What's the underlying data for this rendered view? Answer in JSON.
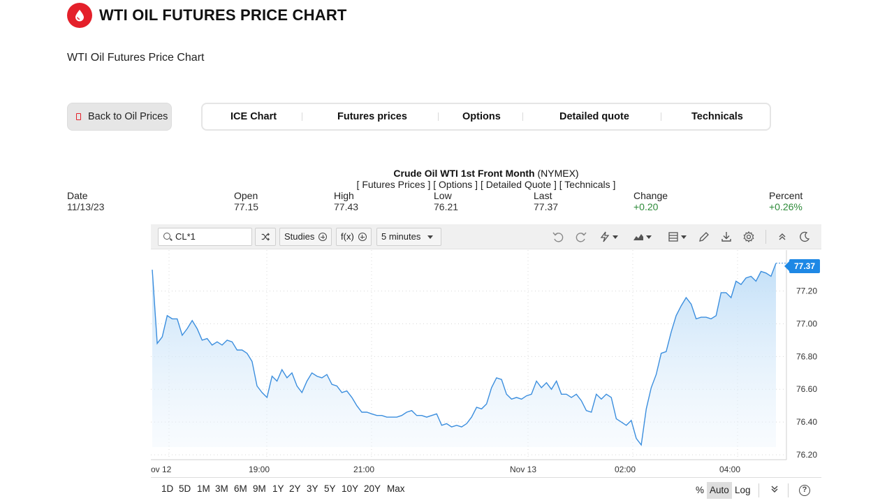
{
  "header": {
    "title": "WTI OIL FUTURES PRICE CHART",
    "logo_icon": "oil-drop-icon",
    "brand_color": "#e4202a"
  },
  "subtitle": "WTI Oil Futures Price Chart",
  "back_button": {
    "label": "Back to Oil Prices"
  },
  "tabs": [
    {
      "label": "ICE Chart"
    },
    {
      "label": "Futures prices"
    },
    {
      "label": "Options"
    },
    {
      "label": "Detailed quote"
    },
    {
      "label": "Technicals"
    }
  ],
  "quote": {
    "instrument": "Crude Oil WTI 1st Front Month",
    "exchange": "(NYMEX)",
    "links": "[ Futures Prices ] [ Options ] [ Detailed Quote ] [ Technicals ]"
  },
  "stats": {
    "date": {
      "label": "Date",
      "value": "11/13/23"
    },
    "open": {
      "label": "Open",
      "value": "77.15"
    },
    "high": {
      "label": "High",
      "value": "77.43"
    },
    "low": {
      "label": "Low",
      "value": "76.21"
    },
    "last": {
      "label": "Last",
      "value": "77.37"
    },
    "change": {
      "label": "Change",
      "value": "+0.20"
    },
    "percent": {
      "label": "Percent",
      "value": "+0.26%"
    },
    "positive_color": "#2e8b3a"
  },
  "toolbar": {
    "symbol": "CL*1",
    "studies_label": "Studies",
    "fx_label": "f(x)",
    "interval": "5 minutes"
  },
  "chart_data": {
    "type": "area",
    "y_ticks": [
      "77.20",
      "77.00",
      "76.80",
      "76.60",
      "76.40",
      "76.20"
    ],
    "ylim": [
      76.17,
      77.45
    ],
    "x_ticks": [
      "ov 12",
      "19:00",
      "21:00",
      "Nov 13",
      "02:00",
      "04:00"
    ],
    "last_value_tag": "77.37",
    "line_color": "#3b8ede",
    "series": [
      {
        "values": [
          77.33,
          76.88,
          76.92,
          77.05,
          77.03,
          77.03,
          76.93,
          76.97,
          77.02,
          76.97,
          76.9,
          76.91,
          76.87,
          76.89,
          76.87,
          76.9,
          76.89,
          76.84,
          76.84,
          76.82,
          76.77,
          76.62,
          76.58,
          76.55,
          76.68,
          76.65,
          76.72,
          76.67,
          76.7,
          76.62,
          76.58,
          76.65,
          76.7,
          76.68,
          76.67,
          76.69,
          76.63,
          76.62,
          76.58,
          76.59,
          76.55,
          76.5,
          76.46,
          76.46,
          76.45,
          76.44,
          76.44,
          76.43,
          76.43,
          76.43,
          76.44,
          76.46,
          76.47,
          76.44,
          76.44,
          76.43,
          76.44,
          76.45,
          76.38,
          76.39,
          76.37,
          76.38,
          76.37,
          76.39,
          76.43,
          76.49,
          76.48,
          76.51,
          76.61,
          76.67,
          76.66,
          76.57,
          76.54,
          76.55,
          76.54,
          76.56,
          76.57,
          76.65,
          76.61,
          76.64,
          76.6,
          76.65,
          76.57,
          76.57,
          76.55,
          76.57,
          76.53,
          76.47,
          76.46,
          76.57,
          76.54,
          76.57,
          76.55,
          76.42,
          76.4,
          76.38,
          76.41,
          76.3,
          76.26,
          76.48,
          76.61,
          76.69,
          76.82,
          76.83,
          76.95,
          77.05,
          77.11,
          77.16,
          77.12,
          77.03,
          77.04,
          77.04,
          77.03,
          77.05,
          77.19,
          77.19,
          77.16,
          77.26,
          77.24,
          77.28,
          77.29,
          77.26,
          77.32,
          77.31,
          77.29,
          77.37
        ]
      }
    ]
  },
  "ranges": [
    "1D",
    "5D",
    "1M",
    "3M",
    "6M",
    "9M",
    "1Y",
    "2Y",
    "3Y",
    "5Y",
    "10Y",
    "20Y",
    "Max"
  ],
  "scale_options": {
    "percent": "%",
    "auto": "Auto",
    "log": "Log"
  }
}
